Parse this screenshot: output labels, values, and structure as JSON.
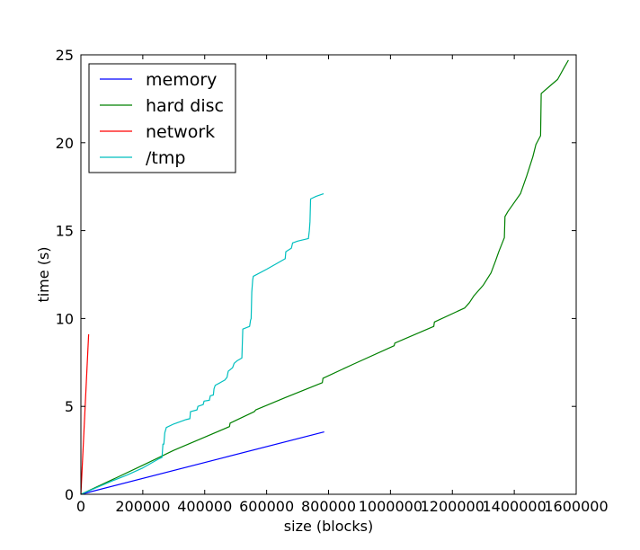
{
  "chart_data": {
    "type": "line",
    "title": "",
    "xlabel": "size (blocks)",
    "ylabel": "time (s)",
    "xlim": [
      0,
      1600000
    ],
    "ylim": [
      0,
      25
    ],
    "xticks": [
      0,
      200000,
      400000,
      600000,
      800000,
      1000000,
      1200000,
      1400000,
      1600000
    ],
    "xtick_labels": [
      "0",
      "200000",
      "400000",
      "600000",
      "800000",
      "1000000",
      "1200000",
      "1400000",
      "1600000"
    ],
    "yticks": [
      0,
      5,
      10,
      15,
      20,
      25
    ],
    "ytick_labels": [
      "0",
      "5",
      "10",
      "15",
      "20",
      "25"
    ],
    "grid": false,
    "legend_position": "top-left",
    "series": [
      {
        "name": "memory",
        "color": "#0000ff",
        "points": [
          [
            0,
            0
          ],
          [
            786000,
            3.55
          ]
        ]
      },
      {
        "name": "hard disc",
        "color": "#008000",
        "points": [
          [
            0,
            0
          ],
          [
            100000,
            0.82
          ],
          [
            200000,
            1.65
          ],
          [
            300000,
            2.5
          ],
          [
            400000,
            3.25
          ],
          [
            480000,
            3.85
          ],
          [
            482000,
            4.05
          ],
          [
            560000,
            4.7
          ],
          [
            565000,
            4.8
          ],
          [
            660000,
            5.5
          ],
          [
            780000,
            6.35
          ],
          [
            782000,
            6.6
          ],
          [
            880000,
            7.4
          ],
          [
            1012000,
            8.45
          ],
          [
            1014000,
            8.6
          ],
          [
            1140000,
            9.55
          ],
          [
            1142000,
            9.8
          ],
          [
            1240000,
            10.6
          ],
          [
            1255000,
            10.9
          ],
          [
            1270000,
            11.3
          ],
          [
            1300000,
            11.9
          ],
          [
            1325000,
            12.6
          ],
          [
            1340000,
            13.3
          ],
          [
            1350000,
            13.8
          ],
          [
            1368000,
            14.6
          ],
          [
            1370000,
            15.8
          ],
          [
            1380000,
            16.1
          ],
          [
            1400000,
            16.6
          ],
          [
            1420000,
            17.1
          ],
          [
            1440000,
            18.1
          ],
          [
            1460000,
            19.2
          ],
          [
            1470000,
            19.9
          ],
          [
            1485000,
            20.4
          ],
          [
            1487000,
            22.8
          ],
          [
            1520000,
            23.3
          ],
          [
            1540000,
            23.6
          ],
          [
            1562000,
            24.3
          ],
          [
            1575000,
            24.7
          ]
        ]
      },
      {
        "name": "network",
        "color": "#ff0000",
        "points": [
          [
            0,
            0
          ],
          [
            25000,
            9.1
          ]
        ]
      },
      {
        "name": "/tmp",
        "color": "#00bfbf",
        "points": [
          [
            0,
            0
          ],
          [
            100000,
            0.75
          ],
          [
            150000,
            1.1
          ],
          [
            200000,
            1.5
          ],
          [
            220000,
            1.7
          ],
          [
            250000,
            2.0
          ],
          [
            262000,
            2.1
          ],
          [
            265000,
            2.85
          ],
          [
            268000,
            2.85
          ],
          [
            271000,
            3.5
          ],
          [
            276000,
            3.8
          ],
          [
            300000,
            4.0
          ],
          [
            340000,
            4.25
          ],
          [
            352000,
            4.3
          ],
          [
            354000,
            4.7
          ],
          [
            375000,
            4.8
          ],
          [
            378000,
            5.0
          ],
          [
            395000,
            5.1
          ],
          [
            398000,
            5.3
          ],
          [
            415000,
            5.35
          ],
          [
            418000,
            5.6
          ],
          [
            428000,
            5.65
          ],
          [
            430000,
            6.0
          ],
          [
            434000,
            6.2
          ],
          [
            450000,
            6.35
          ],
          [
            465000,
            6.5
          ],
          [
            472000,
            6.65
          ],
          [
            476000,
            7.0
          ],
          [
            490000,
            7.2
          ],
          [
            495000,
            7.45
          ],
          [
            505000,
            7.6
          ],
          [
            520000,
            7.75
          ],
          [
            523000,
            9.4
          ],
          [
            545000,
            9.55
          ],
          [
            548000,
            9.9
          ],
          [
            550000,
            10.0
          ],
          [
            552000,
            11.5
          ],
          [
            555000,
            12.2
          ],
          [
            557000,
            12.4
          ],
          [
            600000,
            12.8
          ],
          [
            630000,
            13.1
          ],
          [
            660000,
            13.4
          ],
          [
            662000,
            13.8
          ],
          [
            680000,
            14.0
          ],
          [
            684000,
            14.3
          ],
          [
            700000,
            14.4
          ],
          [
            735000,
            14.55
          ],
          [
            738000,
            15.0
          ],
          [
            740000,
            15.5
          ],
          [
            742000,
            16.8
          ],
          [
            760000,
            16.95
          ],
          [
            784000,
            17.1
          ]
        ]
      }
    ]
  }
}
